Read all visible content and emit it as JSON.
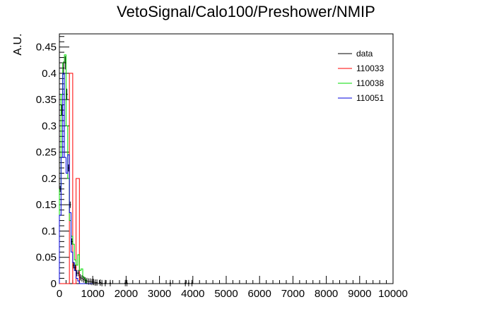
{
  "chart_data": {
    "type": "histogram",
    "title": "VetoSignal/Calo100/Preshower/NMIP",
    "xlabel": "",
    "ylabel": "A.U.",
    "xlim": [
      0,
      10000
    ],
    "ylim": [
      0,
      0.475
    ],
    "x_ticks": [
      0,
      1000,
      2000,
      3000,
      4000,
      5000,
      6000,
      7000,
      8000,
      9000,
      10000
    ],
    "x_tick_labels": [
      "0",
      "1000",
      "2000",
      "3000",
      "4000",
      "5000",
      "6000",
      "7000",
      "8000",
      "9000",
      "10000"
    ],
    "y_ticks": [
      0,
      0.05,
      0.1,
      0.15,
      0.2,
      0.25,
      0.3,
      0.35,
      0.4,
      0.45
    ],
    "y_tick_labels": [
      "0",
      "0.05",
      "0.1",
      "0.15",
      "0.2",
      "0.25",
      "0.3",
      "0.35",
      "0.4",
      "0.45"
    ],
    "legend_position": "top-right",
    "data_points": {
      "name": "data",
      "color": "#000000",
      "bin_width": 50,
      "x": [
        25,
        75,
        125,
        175,
        225,
        275,
        325,
        375,
        425,
        475,
        525,
        575,
        625,
        675,
        725,
        775,
        825,
        875,
        925,
        975,
        1025,
        1075,
        1125,
        1225,
        1275,
        1375,
        1525,
        1975,
        2025,
        3325,
        3775,
        3875,
        3975
      ],
      "y": [
        0.18,
        0.33,
        0.41,
        0.42,
        0.36,
        0.22,
        0.15,
        0.08,
        0.035,
        0.03,
        0.02,
        0.02,
        0.012,
        0.01,
        0.008,
        0.006,
        0.005,
        0.004,
        0.004,
        0.003,
        0.003,
        0.002,
        0.002,
        0.002,
        0.001,
        0.001,
        0.001,
        0.001,
        0.001,
        0.001,
        0.001,
        0.001,
        0.001
      ]
    },
    "series": [
      {
        "name": "110033",
        "color": "#ff0000",
        "edges": [
          0,
          100,
          300,
          400,
          500,
          600,
          1000
        ],
        "values": [
          0,
          0,
          0.4,
          0,
          0.2,
          0
        ]
      },
      {
        "name": "110038",
        "color": "#00dd00",
        "edges": [
          0,
          50,
          100,
          150,
          200,
          250,
          300,
          350,
          400,
          450,
          500,
          550,
          600,
          650,
          700,
          750,
          800,
          1000
        ],
        "values": [
          0.18,
          0.36,
          0.42,
          0.435,
          0.3,
          0.2,
          0.12,
          0.09,
          0.075,
          0.045,
          0.035,
          0.055,
          0.025,
          0.028,
          0.012,
          0.008,
          0
        ]
      },
      {
        "name": "110051",
        "color": "#0000dd",
        "edges": [
          0,
          50,
          100,
          150,
          200,
          250,
          300,
          350,
          400,
          450,
          500,
          550,
          600,
          1000
        ],
        "values": [
          0.13,
          0.24,
          0.4,
          0.24,
          0.21,
          0.245,
          0.135,
          0.06,
          0.04,
          0.025,
          0.01,
          0.005,
          0
        ]
      }
    ]
  }
}
